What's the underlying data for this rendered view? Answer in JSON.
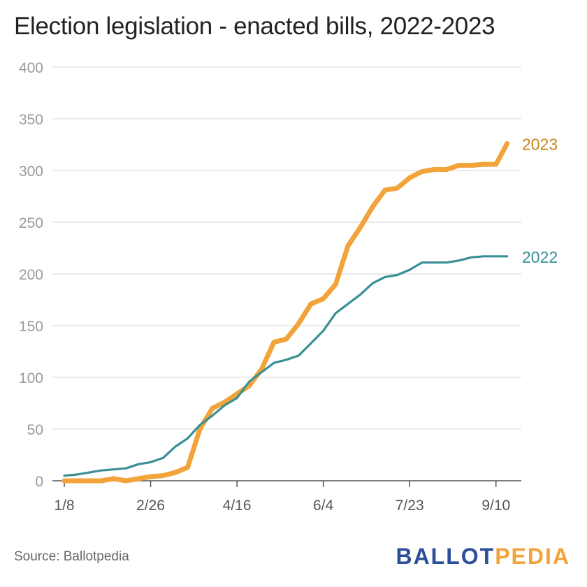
{
  "colors": {
    "series_2023": "#f2a33a",
    "series_2022": "#3a8f96",
    "label_2023": "#c8861f",
    "label_2022": "#3a8f96",
    "grid": "#dddddd",
    "tick_text": "#9a9a9a",
    "brand_blue": "#2d4e9a",
    "brand_orange": "#f2a33a"
  },
  "footer": {
    "source": "Source: Ballotpedia",
    "brand_part1": "BALLOT",
    "brand_part2": "PEDIA"
  },
  "chart_data": {
    "type": "line",
    "title": "Election legislation - enacted bills, 2022-2023",
    "xlabel": "",
    "ylabel": "",
    "ylim": [
      0,
      400
    ],
    "yticks": [
      0,
      50,
      100,
      150,
      200,
      250,
      300,
      350,
      400
    ],
    "xticks": [
      {
        "label": "1/8",
        "week": 0
      },
      {
        "label": "2/26",
        "week": 7
      },
      {
        "label": "4/16",
        "week": 14
      },
      {
        "label": "6/4",
        "week": 21
      },
      {
        "label": "7/23",
        "week": 28
      },
      {
        "label": "9/10",
        "week": 35
      }
    ],
    "grid": true,
    "series": [
      {
        "name": "2023",
        "x": [
          0,
          1,
          2,
          3,
          4,
          5,
          6,
          7,
          8,
          9,
          10,
          11,
          12,
          13,
          14,
          15,
          16,
          17,
          18,
          19,
          20,
          21,
          22,
          23,
          24,
          25,
          26,
          27,
          28,
          29,
          30,
          31,
          32,
          33,
          34,
          35,
          35.9
        ],
        "values": [
          0,
          0,
          0,
          0,
          2,
          0,
          2,
          4,
          5,
          8,
          13,
          50,
          70,
          76,
          84,
          92,
          108,
          134,
          137,
          152,
          171,
          176,
          190,
          227,
          245,
          265,
          281,
          283,
          293,
          299,
          301,
          301,
          305,
          305,
          306,
          306,
          326
        ]
      },
      {
        "name": "2022",
        "x": [
          0,
          1,
          2,
          3,
          4,
          5,
          6,
          7,
          8,
          9,
          10,
          11,
          12,
          13,
          14,
          15,
          16,
          17,
          18,
          19,
          20,
          21,
          22,
          23,
          24,
          25,
          26,
          27,
          28,
          29,
          30,
          31,
          32,
          33,
          34,
          35,
          35.9
        ],
        "values": [
          5,
          6,
          8,
          10,
          11,
          12,
          16,
          18,
          22,
          33,
          41,
          54,
          63,
          73,
          80,
          96,
          105,
          114,
          117,
          121,
          133,
          145,
          162,
          171,
          180,
          191,
          197,
          199,
          204,
          211,
          211,
          211,
          213,
          216,
          217,
          217,
          217
        ]
      }
    ]
  }
}
